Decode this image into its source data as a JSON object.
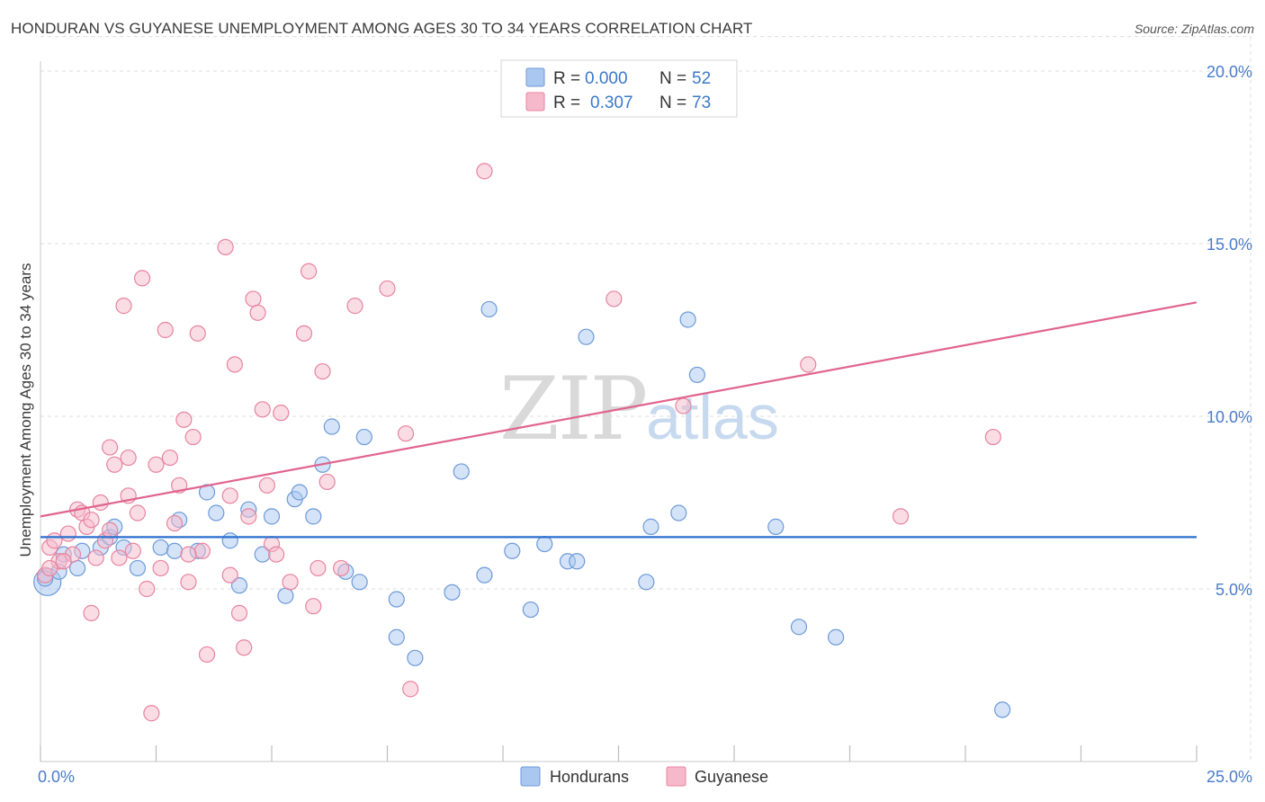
{
  "title": "HONDURAN VS GUYANESE UNEMPLOYMENT AMONG AGES 30 TO 34 YEARS CORRELATION CHART",
  "source": "Source: ZipAtlas.com",
  "watermark": {
    "zip": "ZIP",
    "atlas": "atlas"
  },
  "colors": {
    "honduran_fill": "#aac7f0",
    "honduran_stroke": "#6d9ad8",
    "honduran_line": "#2a6fcf",
    "guyanese_fill": "#f6b9cc",
    "guyanese_stroke": "#e8839f",
    "guyanese_line": "#e0648f",
    "grid": "#dcdcdc",
    "tick_label": "#4a7cc9"
  },
  "legend": {
    "rows": [
      {
        "r_label": "R =",
        "r_value": "0.000",
        "n_label": "N =",
        "n_value": "52"
      },
      {
        "r_label": "R =",
        "r_value": "0.307",
        "n_label": "N =",
        "n_value": "73"
      }
    ]
  },
  "chart_data": {
    "type": "scatter",
    "title": "HONDURAN VS GUYANESE UNEMPLOYMENT AMONG AGES 30 TO 34 YEARS CORRELATION CHART",
    "xlabel": "",
    "ylabel": "Unemployment Among Ages 30 to 34 years",
    "xlim": [
      0,
      25
    ],
    "ylim": [
      0,
      20
    ],
    "x_tick_labels": [
      "0.0%",
      "25.0%"
    ],
    "y_ticks": [
      5,
      10,
      15,
      20
    ],
    "y_tick_labels": [
      "5.0%",
      "10.0%",
      "15.0%",
      "20.0%"
    ],
    "grid": true,
    "legend_position": "top-center",
    "series": [
      {
        "name": "Hondurans",
        "r": 0.0,
        "n": 52,
        "trend": {
          "x": [
            0,
            25
          ],
          "y": [
            6.5,
            6.5
          ]
        },
        "points": [
          [
            0.1,
            5.3
          ],
          [
            0.4,
            5.5
          ],
          [
            0.8,
            5.6
          ],
          [
            0.9,
            6.1
          ],
          [
            1.3,
            6.2
          ],
          [
            1.5,
            6.5
          ],
          [
            1.6,
            6.8
          ],
          [
            2.1,
            5.6
          ],
          [
            2.6,
            6.2
          ],
          [
            3.0,
            7.0
          ],
          [
            2.9,
            6.1
          ],
          [
            3.4,
            6.1
          ],
          [
            3.6,
            7.8
          ],
          [
            3.8,
            7.2
          ],
          [
            4.1,
            6.4
          ],
          [
            4.3,
            5.1
          ],
          [
            4.5,
            7.3
          ],
          [
            4.8,
            6.0
          ],
          [
            5.0,
            7.1
          ],
          [
            5.3,
            4.8
          ],
          [
            5.5,
            7.6
          ],
          [
            5.6,
            7.8
          ],
          [
            5.9,
            7.1
          ],
          [
            6.1,
            8.6
          ],
          [
            6.3,
            9.7
          ],
          [
            6.6,
            5.5
          ],
          [
            6.9,
            5.2
          ],
          [
            7.0,
            9.4
          ],
          [
            7.7,
            3.6
          ],
          [
            7.7,
            4.7
          ],
          [
            8.1,
            3.0
          ],
          [
            8.9,
            4.9
          ],
          [
            9.1,
            8.4
          ],
          [
            9.6,
            5.4
          ],
          [
            9.7,
            13.1
          ],
          [
            10.2,
            6.1
          ],
          [
            10.6,
            4.4
          ],
          [
            10.9,
            6.3
          ],
          [
            11.4,
            5.8
          ],
          [
            11.6,
            5.8
          ],
          [
            11.8,
            12.3
          ],
          [
            13.1,
            5.2
          ],
          [
            13.2,
            6.8
          ],
          [
            13.8,
            7.2
          ],
          [
            14.0,
            12.8
          ],
          [
            14.2,
            11.2
          ],
          [
            15.9,
            6.8
          ],
          [
            16.4,
            3.9
          ],
          [
            17.2,
            3.6
          ],
          [
            20.8,
            1.5
          ],
          [
            0.5,
            6.0
          ],
          [
            1.8,
            6.2
          ]
        ]
      },
      {
        "name": "Guyanese",
        "r": 0.307,
        "n": 73,
        "trend": {
          "x": [
            0,
            25
          ],
          "y": [
            7.1,
            13.3
          ]
        },
        "points": [
          [
            0.1,
            5.4
          ],
          [
            0.2,
            6.2
          ],
          [
            0.3,
            6.4
          ],
          [
            0.4,
            5.8
          ],
          [
            0.6,
            6.6
          ],
          [
            0.7,
            6.0
          ],
          [
            0.8,
            7.3
          ],
          [
            0.9,
            7.2
          ],
          [
            1.0,
            6.8
          ],
          [
            1.1,
            4.3
          ],
          [
            1.2,
            5.9
          ],
          [
            1.3,
            7.5
          ],
          [
            1.4,
            6.4
          ],
          [
            1.5,
            6.7
          ],
          [
            1.5,
            9.1
          ],
          [
            1.6,
            8.6
          ],
          [
            1.7,
            5.9
          ],
          [
            1.8,
            13.2
          ],
          [
            1.9,
            8.8
          ],
          [
            1.9,
            7.7
          ],
          [
            2.1,
            7.2
          ],
          [
            2.2,
            14.0
          ],
          [
            2.3,
            5.0
          ],
          [
            2.4,
            1.4
          ],
          [
            2.5,
            8.6
          ],
          [
            2.6,
            5.6
          ],
          [
            2.7,
            12.5
          ],
          [
            2.8,
            8.8
          ],
          [
            2.9,
            6.9
          ],
          [
            3.0,
            8.0
          ],
          [
            3.1,
            9.9
          ],
          [
            3.2,
            5.2
          ],
          [
            3.3,
            9.4
          ],
          [
            3.4,
            12.4
          ],
          [
            3.5,
            6.1
          ],
          [
            3.6,
            3.1
          ],
          [
            4.0,
            14.9
          ],
          [
            4.1,
            7.7
          ],
          [
            4.2,
            11.5
          ],
          [
            4.3,
            4.3
          ],
          [
            4.4,
            3.3
          ],
          [
            4.5,
            7.1
          ],
          [
            4.6,
            13.4
          ],
          [
            4.7,
            13.0
          ],
          [
            4.8,
            10.2
          ],
          [
            4.9,
            8.0
          ],
          [
            5.0,
            6.3
          ],
          [
            5.1,
            6.0
          ],
          [
            5.2,
            10.1
          ],
          [
            5.4,
            5.2
          ],
          [
            5.7,
            12.4
          ],
          [
            5.8,
            14.2
          ],
          [
            5.9,
            4.5
          ],
          [
            6.0,
            5.6
          ],
          [
            6.1,
            11.3
          ],
          [
            6.2,
            8.1
          ],
          [
            6.5,
            5.6
          ],
          [
            6.8,
            13.2
          ],
          [
            7.5,
            13.7
          ],
          [
            7.9,
            9.5
          ],
          [
            8.0,
            2.1
          ],
          [
            9.6,
            17.1
          ],
          [
            12.4,
            13.4
          ],
          [
            13.9,
            10.3
          ],
          [
            16.6,
            11.5
          ],
          [
            18.6,
            7.1
          ],
          [
            20.6,
            9.4
          ],
          [
            0.2,
            5.6
          ],
          [
            0.5,
            5.8
          ],
          [
            1.1,
            7.0
          ],
          [
            2.0,
            6.1
          ],
          [
            3.2,
            6.0
          ],
          [
            4.1,
            5.4
          ]
        ]
      }
    ]
  }
}
